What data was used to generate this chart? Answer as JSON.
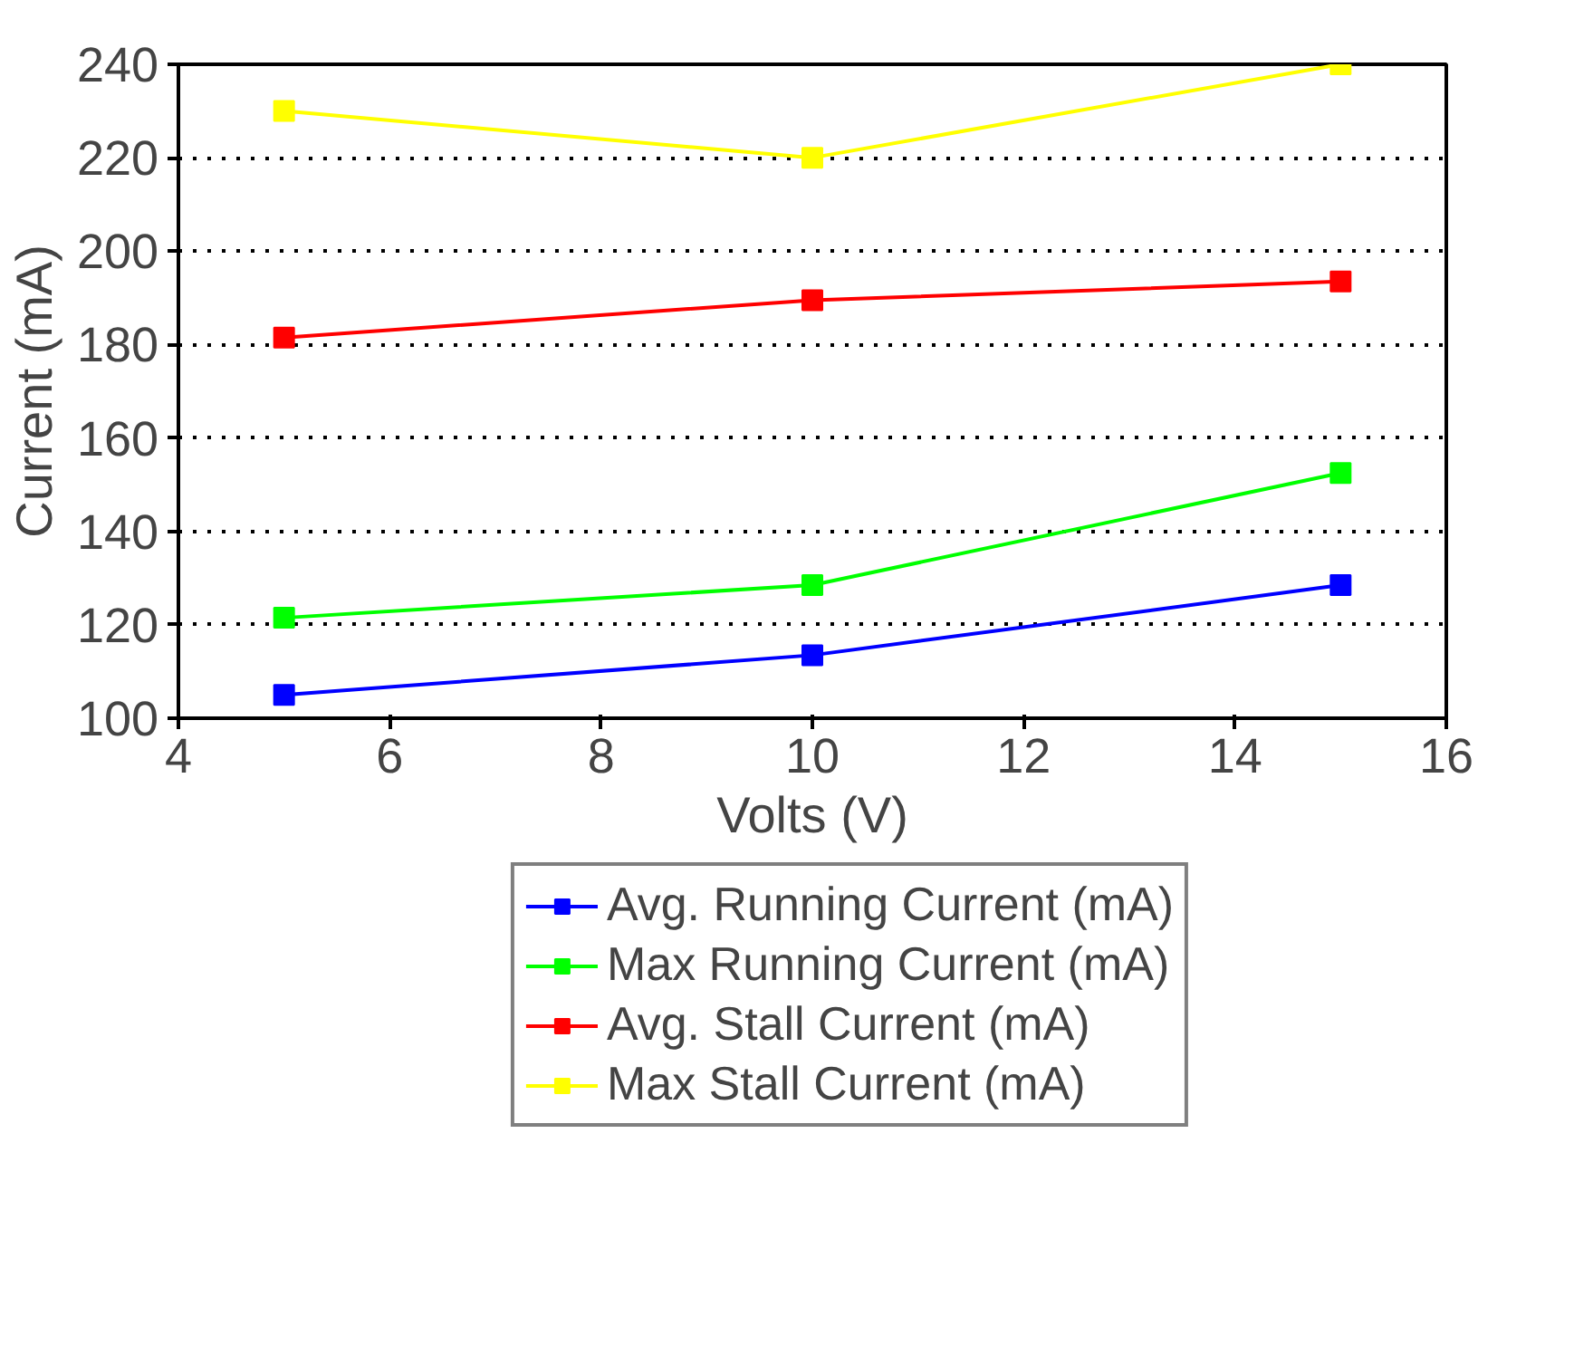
{
  "chart_data": {
    "type": "line",
    "xlabel": "Volts (V)",
    "ylabel": "Current (mA)",
    "x": [
      5,
      10,
      15
    ],
    "series": [
      {
        "name": "Avg. Running Current (mA)",
        "color": "#0000ff",
        "values": [
          105,
          113.5,
          128.5
        ]
      },
      {
        "name": "Max Running Current (mA)",
        "color": "#00ff00",
        "values": [
          121.5,
          128.5,
          152.5
        ]
      },
      {
        "name": "Avg. Stall Current (mA)",
        "color": "#ff0000",
        "values": [
          181.5,
          189.5,
          193.5
        ]
      },
      {
        "name": "Max Stall Current (mA)",
        "color": "#ffff00",
        "values": [
          230,
          220,
          240
        ]
      }
    ],
    "xlim": [
      4,
      16
    ],
    "xticks": [
      4,
      6,
      8,
      10,
      12,
      14,
      16
    ],
    "ylim": [
      100,
      240
    ],
    "yticks": [
      100,
      120,
      140,
      160,
      180,
      200,
      220,
      240
    ],
    "grid": "y",
    "legend": "bottom",
    "marker": "square",
    "line_style": "solid"
  }
}
